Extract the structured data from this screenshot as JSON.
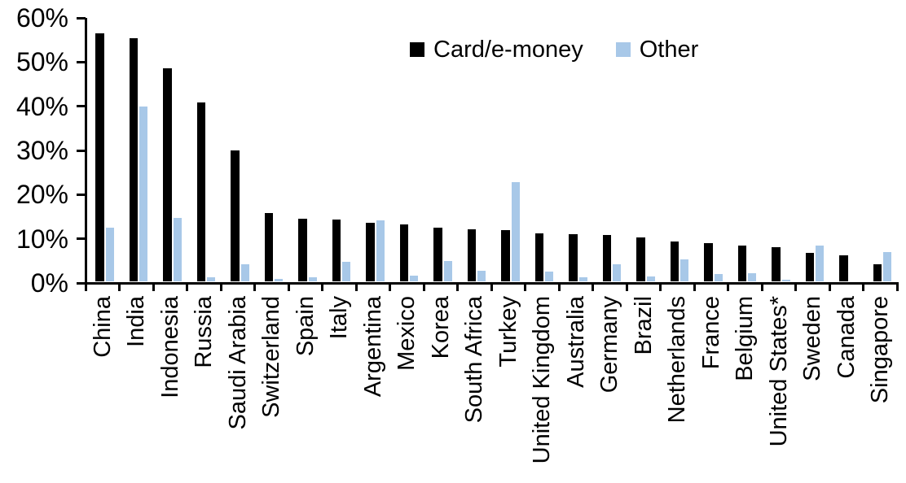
{
  "chart_data": {
    "type": "bar",
    "title": "",
    "xlabel": "",
    "ylabel": "",
    "ylim": [
      0,
      60
    ],
    "ytick_step": 10,
    "ytick_labels": [
      "0%",
      "10%",
      "20%",
      "30%",
      "40%",
      "50%",
      "60%"
    ],
    "grid": false,
    "legend_position": "top-center",
    "categories": [
      "China",
      "India",
      "Indonesia",
      "Russia",
      "Saudi Arabia",
      "Switzerland",
      "Spain",
      "Italy",
      "Argentina",
      "Mexico",
      "Korea",
      "South Africa",
      "Turkey",
      "United Kingdom",
      "Australia",
      "Germany",
      "Brazil",
      "Netherlands",
      "France",
      "Belgium",
      "United States*",
      "Sweden",
      "Canada",
      "Singapore"
    ],
    "series": [
      {
        "name": "Card/e-money",
        "color": "#000000",
        "values": [
          56.3,
          55.1,
          48.3,
          40.5,
          29.8,
          15.6,
          14.2,
          14.1,
          13.4,
          13.0,
          12.2,
          11.8,
          11.6,
          11.0,
          10.8,
          10.6,
          10.0,
          9.2,
          8.7,
          8.2,
          7.9,
          6.6,
          6.0,
          3.9
        ]
      },
      {
        "name": "Other",
        "color": "#A8C8E8",
        "values": [
          12.3,
          39.7,
          14.5,
          1.0,
          3.9,
          0.7,
          1.0,
          4.6,
          13.9,
          1.4,
          4.7,
          2.5,
          22.6,
          2.3,
          1.1,
          4.0,
          1.2,
          5.0,
          1.7,
          2.0,
          0.4,
          8.1,
          0.0,
          6.7
        ]
      }
    ]
  },
  "legend": {
    "card_label": "Card/e-money",
    "other_label": "Other"
  },
  "colors": {
    "axis": "#000000",
    "background": "#ffffff"
  }
}
